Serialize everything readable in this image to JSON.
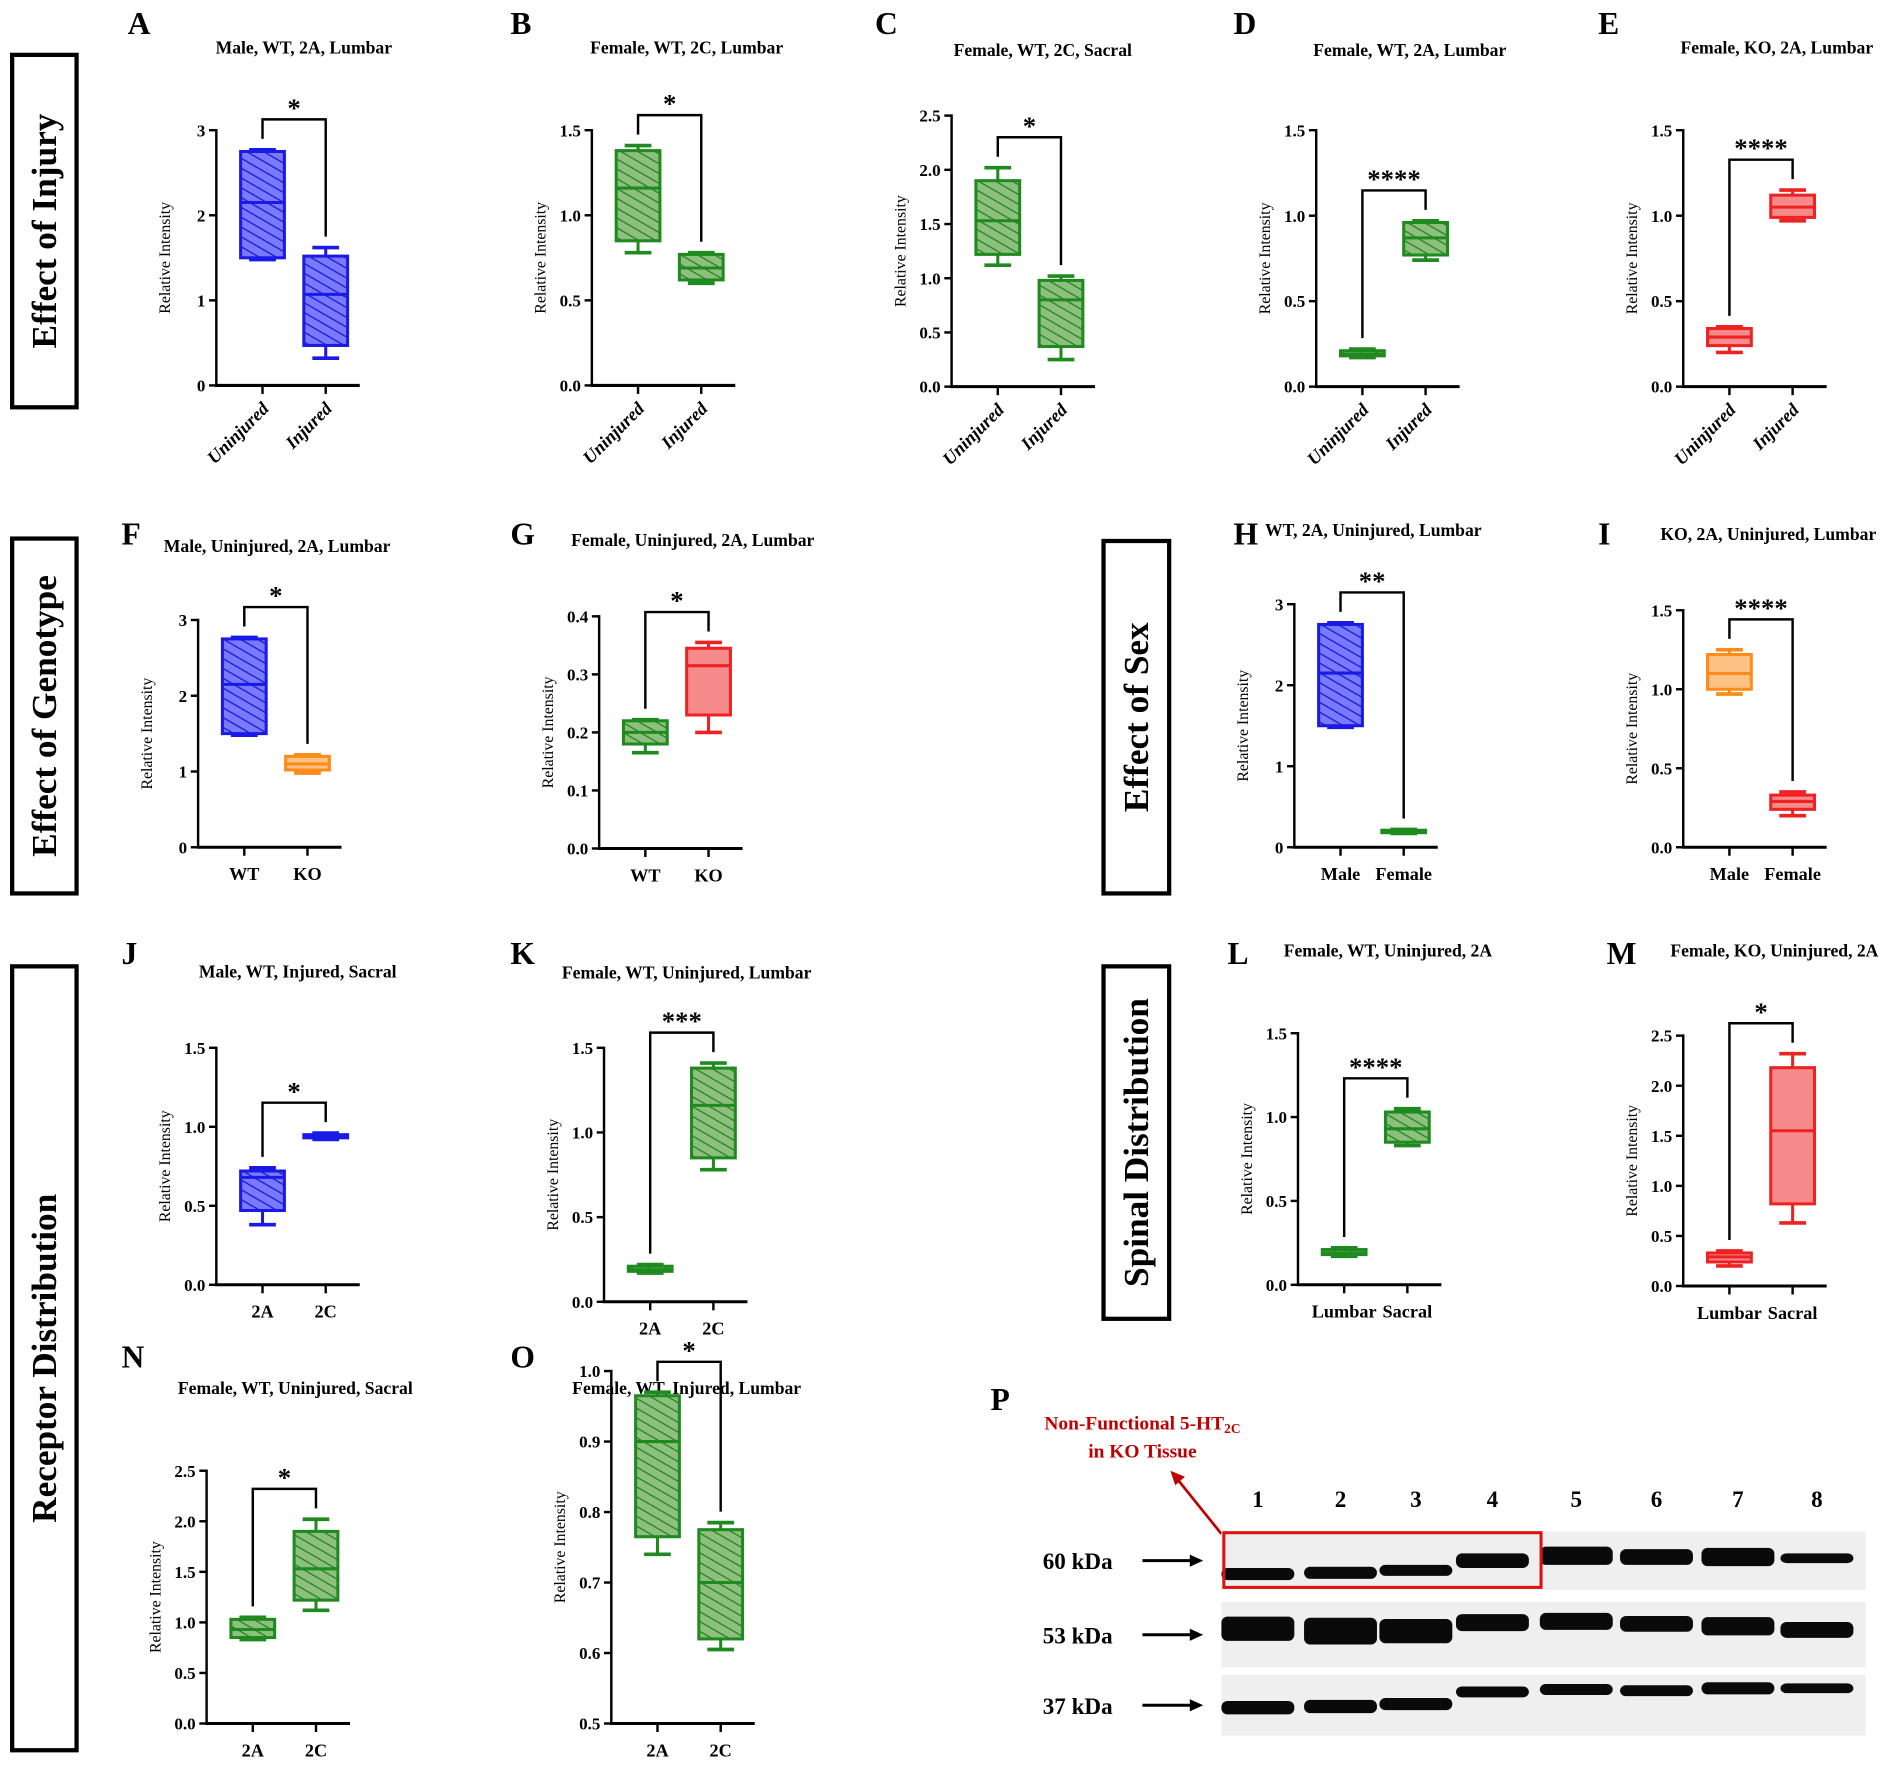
{
  "colors": {
    "blue": "#1a1ae6",
    "blue_fill": "#7a7aff",
    "green": "#1f8a1f",
    "green_fill": "#8fbf7f",
    "orange": "#ff8c1a",
    "orange_fill": "#ffc285",
    "red": "#ee2222",
    "red_fill": "#f78a8a",
    "annotation": "#c00000"
  },
  "sections": [
    {
      "id": "injury",
      "label": "Effect of Injury"
    },
    {
      "id": "genotype",
      "label": "Effect of Genotype"
    },
    {
      "id": "receptor",
      "label": "Receptor Distribution"
    },
    {
      "id": "sex",
      "label": "Effect of Sex"
    },
    {
      "id": "spinal",
      "label": "Spinal Distribution"
    }
  ],
  "chart_data": [
    {
      "letter": "A",
      "type": "box",
      "title": "Male, WT, 2A, Lumbar",
      "ylabel": "Relative Intensity",
      "ylim": [
        0,
        3
      ],
      "yticks": [
        0,
        1,
        2,
        3
      ],
      "tick_labels": [
        "0",
        "1",
        "2",
        "3"
      ],
      "categories": [
        "Uninjured",
        "Injured"
      ],
      "significance": "*",
      "boxes": [
        {
          "color": "blue",
          "hatched": true,
          "min": 1.48,
          "q1": 1.5,
          "median": 2.15,
          "q3": 2.75,
          "max": 2.77
        },
        {
          "color": "blue",
          "hatched": true,
          "min": 0.32,
          "q1": 0.47,
          "median": 1.07,
          "q3": 1.52,
          "max": 1.62
        }
      ]
    },
    {
      "letter": "B",
      "type": "box",
      "title": "Female, WT, 2C, Lumbar",
      "ylabel": "Relative Intensity",
      "ylim": [
        0,
        1.5
      ],
      "yticks": [
        0,
        0.5,
        1,
        1.5
      ],
      "tick_labels": [
        "0.0",
        "0.5",
        "1.0",
        "1.5"
      ],
      "categories": [
        "Uninjured",
        "Injured"
      ],
      "significance": "*",
      "boxes": [
        {
          "color": "green",
          "hatched": true,
          "min": 0.78,
          "q1": 0.85,
          "median": 1.16,
          "q3": 1.38,
          "max": 1.41
        },
        {
          "color": "green",
          "hatched": true,
          "min": 0.6,
          "q1": 0.62,
          "median": 0.69,
          "q3": 0.77,
          "max": 0.78
        }
      ]
    },
    {
      "letter": "C",
      "type": "box",
      "title": "Female, WT, 2C, Sacral",
      "ylabel": "Relative Intensity",
      "ylim": [
        0,
        2.5
      ],
      "yticks": [
        0,
        0.5,
        1,
        1.5,
        2,
        2.5
      ],
      "tick_labels": [
        "0.0",
        "0.5",
        "1.0",
        "1.5",
        "2.0",
        "2.5"
      ],
      "categories": [
        "Uninjured",
        "Injured"
      ],
      "significance": "*",
      "boxes": [
        {
          "color": "green",
          "hatched": true,
          "min": 1.12,
          "q1": 1.22,
          "median": 1.53,
          "q3": 1.9,
          "max": 2.02
        },
        {
          "color": "green",
          "hatched": true,
          "min": 0.25,
          "q1": 0.37,
          "median": 0.8,
          "q3": 0.98,
          "max": 1.02
        }
      ]
    },
    {
      "letter": "D",
      "type": "box",
      "title": "Female, WT, 2A, Lumbar",
      "ylabel": "Relative Intensity",
      "ylim": [
        0,
        1.5
      ],
      "yticks": [
        0,
        0.5,
        1,
        1.5
      ],
      "tick_labels": [
        "0.0",
        "0.5",
        "1.0",
        "1.5"
      ],
      "categories": [
        "Uninjured",
        "Injured"
      ],
      "significance": "****",
      "boxes": [
        {
          "color": "green",
          "hatched": true,
          "min": 0.17,
          "q1": 0.18,
          "median": 0.19,
          "q3": 0.21,
          "max": 0.22
        },
        {
          "color": "green",
          "hatched": true,
          "min": 0.74,
          "q1": 0.77,
          "median": 0.87,
          "q3": 0.96,
          "max": 0.97
        }
      ]
    },
    {
      "letter": "E",
      "type": "box",
      "title": "Female, KO, 2A, Lumbar",
      "ylabel": "Relative Intensity",
      "ylim": [
        0,
        1.5
      ],
      "yticks": [
        0,
        0.5,
        1,
        1.5
      ],
      "tick_labels": [
        "0.0",
        "0.5",
        "1.0",
        "1.5"
      ],
      "categories": [
        "Uninjured",
        "Injured"
      ],
      "significance": "****",
      "boxes": [
        {
          "color": "red",
          "hatched": false,
          "min": 0.2,
          "q1": 0.24,
          "median": 0.29,
          "q3": 0.34,
          "max": 0.35
        },
        {
          "color": "red",
          "hatched": false,
          "min": 0.97,
          "q1": 0.99,
          "median": 1.05,
          "q3": 1.12,
          "max": 1.15
        }
      ]
    },
    {
      "letter": "F",
      "type": "box",
      "title": "Male, Uninjured, 2A, Lumbar",
      "ylabel": "Relative Intensity",
      "ylim": [
        0,
        3
      ],
      "yticks": [
        0,
        1,
        2,
        3
      ],
      "tick_labels": [
        "0",
        "1",
        "2",
        "3"
      ],
      "categories": [
        "WT",
        "KO"
      ],
      "significance": "*",
      "boxes": [
        {
          "color": "blue",
          "hatched": true,
          "min": 1.48,
          "q1": 1.5,
          "median": 2.15,
          "q3": 2.75,
          "max": 2.77
        },
        {
          "color": "orange",
          "hatched": false,
          "min": 0.98,
          "q1": 1.02,
          "median": 1.1,
          "q3": 1.2,
          "max": 1.22
        }
      ]
    },
    {
      "letter": "G",
      "type": "box",
      "title": "Female, Uninjured, 2A, Lumbar",
      "ylabel": "Relative Intensity",
      "ylim": [
        0,
        0.4
      ],
      "yticks": [
        0,
        0.1,
        0.2,
        0.3,
        0.4
      ],
      "tick_labels": [
        "0.0",
        "0.1",
        "0.2",
        "0.3",
        "0.4"
      ],
      "categories": [
        "WT",
        "KO"
      ],
      "significance": "*",
      "boxes": [
        {
          "color": "green",
          "hatched": true,
          "min": 0.165,
          "q1": 0.18,
          "median": 0.2,
          "q3": 0.22,
          "max": 0.222
        },
        {
          "color": "red",
          "hatched": false,
          "min": 0.2,
          "q1": 0.23,
          "median": 0.315,
          "q3": 0.345,
          "max": 0.355
        }
      ]
    },
    {
      "letter": "H",
      "type": "box",
      "title": "WT, 2A, Uninjured, Lumbar",
      "ylabel": "Relative Intensity",
      "ylim": [
        0,
        3
      ],
      "yticks": [
        0,
        1,
        2,
        3
      ],
      "tick_labels": [
        "0",
        "1",
        "2",
        "3"
      ],
      "categories": [
        "Male",
        "Female"
      ],
      "significance": "**",
      "boxes": [
        {
          "color": "blue",
          "hatched": true,
          "min": 1.48,
          "q1": 1.5,
          "median": 2.15,
          "q3": 2.75,
          "max": 2.77
        },
        {
          "color": "green",
          "hatched": true,
          "min": 0.17,
          "q1": 0.18,
          "median": 0.19,
          "q3": 0.21,
          "max": 0.22
        }
      ]
    },
    {
      "letter": "I",
      "type": "box",
      "title": "KO, 2A, Uninjured, Lumbar",
      "ylabel": "Relative Intensity",
      "ylim": [
        0,
        1.5
      ],
      "yticks": [
        0,
        0.5,
        1,
        1.5
      ],
      "tick_labels": [
        "0.0",
        "0.5",
        "1.0",
        "1.5"
      ],
      "categories": [
        "Male",
        "Female"
      ],
      "significance": "****",
      "boxes": [
        {
          "color": "orange",
          "hatched": false,
          "min": 0.97,
          "q1": 1.0,
          "median": 1.1,
          "q3": 1.22,
          "max": 1.25
        },
        {
          "color": "red",
          "hatched": false,
          "min": 0.2,
          "q1": 0.24,
          "median": 0.29,
          "q3": 0.33,
          "max": 0.35
        }
      ]
    },
    {
      "letter": "J",
      "type": "box",
      "title": "Male, WT, Injured, Sacral",
      "ylabel": "Relative Intensity",
      "ylim": [
        0,
        1.5
      ],
      "yticks": [
        0,
        0.5,
        1,
        1.5
      ],
      "tick_labels": [
        "0.0",
        "0.5",
        "1.0",
        "1.5"
      ],
      "categories": [
        "2A",
        "2C"
      ],
      "significance": "*",
      "boxes": [
        {
          "color": "blue",
          "hatched": true,
          "min": 0.38,
          "q1": 0.47,
          "median": 0.68,
          "q3": 0.72,
          "max": 0.74
        },
        {
          "color": "blue",
          "hatched": true,
          "min": 0.92,
          "q1": 0.93,
          "median": 0.94,
          "q3": 0.95,
          "max": 0.96
        }
      ]
    },
    {
      "letter": "K",
      "type": "box",
      "title": "Female, WT, Uninjured, Lumbar",
      "ylabel": "Relative Intensity",
      "ylim": [
        0,
        1.5
      ],
      "yticks": [
        0,
        0.5,
        1,
        1.5
      ],
      "tick_labels": [
        "0.0",
        "0.5",
        "1.0",
        "1.5"
      ],
      "categories": [
        "2A",
        "2C"
      ],
      "significance": "***",
      "boxes": [
        {
          "color": "green",
          "hatched": true,
          "min": 0.17,
          "q1": 0.18,
          "median": 0.19,
          "q3": 0.21,
          "max": 0.22
        },
        {
          "color": "green",
          "hatched": true,
          "min": 0.78,
          "q1": 0.85,
          "median": 1.16,
          "q3": 1.38,
          "max": 1.41
        }
      ]
    },
    {
      "letter": "L",
      "type": "box",
      "title": "Female, WT, Uninjured, 2A",
      "ylabel": "Relative Intensity",
      "ylim": [
        0,
        1.5
      ],
      "yticks": [
        0,
        0.5,
        1,
        1.5
      ],
      "tick_labels": [
        "0.0",
        "0.5",
        "1.0",
        "1.5"
      ],
      "categories": [
        "Lumbar",
        "Sacral"
      ],
      "significance": "****",
      "boxes": [
        {
          "color": "green",
          "hatched": true,
          "min": 0.17,
          "q1": 0.18,
          "median": 0.19,
          "q3": 0.21,
          "max": 0.22
        },
        {
          "color": "green",
          "hatched": true,
          "min": 0.83,
          "q1": 0.85,
          "median": 0.93,
          "q3": 1.03,
          "max": 1.05
        }
      ]
    },
    {
      "letter": "M",
      "type": "box",
      "title": "Female, KO, Uninjured, 2A",
      "ylabel": "Relative Intensity",
      "ylim": [
        0,
        2.5
      ],
      "yticks": [
        0,
        0.5,
        1,
        1.5,
        2,
        2.5
      ],
      "tick_labels": [
        "0.0",
        "0.5",
        "1.0",
        "1.5",
        "2.0",
        "2.5"
      ],
      "categories": [
        "Lumbar",
        "Sacral"
      ],
      "significance": "*",
      "boxes": [
        {
          "color": "red",
          "hatched": false,
          "min": 0.2,
          "q1": 0.24,
          "median": 0.29,
          "q3": 0.33,
          "max": 0.35
        },
        {
          "color": "red",
          "hatched": false,
          "min": 0.63,
          "q1": 0.82,
          "median": 1.55,
          "q3": 2.18,
          "max": 2.32
        }
      ]
    },
    {
      "letter": "N",
      "type": "box",
      "title": "Female, WT, Uninjured, Sacral",
      "ylabel": "Relative Intensity",
      "ylim": [
        0,
        2.5
      ],
      "yticks": [
        0,
        0.5,
        1,
        1.5,
        2,
        2.5
      ],
      "tick_labels": [
        "0.0",
        "0.5",
        "1.0",
        "1.5",
        "2.0",
        "2.5"
      ],
      "categories": [
        "2A",
        "2C"
      ],
      "significance": "*",
      "boxes": [
        {
          "color": "green",
          "hatched": true,
          "min": 0.83,
          "q1": 0.85,
          "median": 0.93,
          "q3": 1.03,
          "max": 1.05
        },
        {
          "color": "green",
          "hatched": true,
          "min": 1.12,
          "q1": 1.22,
          "median": 1.53,
          "q3": 1.9,
          "max": 2.02
        }
      ]
    },
    {
      "letter": "O",
      "type": "box",
      "title": "Female, WT, Injured, Lumbar",
      "ylabel": "Relative Intensity",
      "ylim": [
        0.5,
        1.0
      ],
      "yticks": [
        0.5,
        0.6,
        0.7,
        0.8,
        0.9,
        1.0
      ],
      "tick_labels": [
        "0.5",
        "0.6",
        "0.7",
        "0.8",
        "0.9",
        "1.0"
      ],
      "categories": [
        "2A",
        "2C"
      ],
      "significance": "*",
      "boxes": [
        {
          "color": "green",
          "hatched": true,
          "min": 0.74,
          "q1": 0.765,
          "median": 0.9,
          "q3": 0.965,
          "max": 0.97
        },
        {
          "color": "green",
          "hatched": true,
          "min": 0.605,
          "q1": 0.62,
          "median": 0.7,
          "q3": 0.775,
          "max": 0.785
        }
      ]
    }
  ],
  "blot": {
    "letter": "P",
    "annotation_line1": "Non-Functional 5-HT",
    "annotation_sub": "2C",
    "annotation_line2": "in KO Tissue",
    "lanes": [
      "1",
      "2",
      "3",
      "4",
      "5",
      "6",
      "7",
      "8"
    ],
    "rows": [
      {
        "label": "60 kDa"
      },
      {
        "label": "53 kDa"
      },
      {
        "label": "37 kDa"
      }
    ],
    "highlighted_lanes": [
      "1",
      "2",
      "3",
      "4"
    ]
  }
}
